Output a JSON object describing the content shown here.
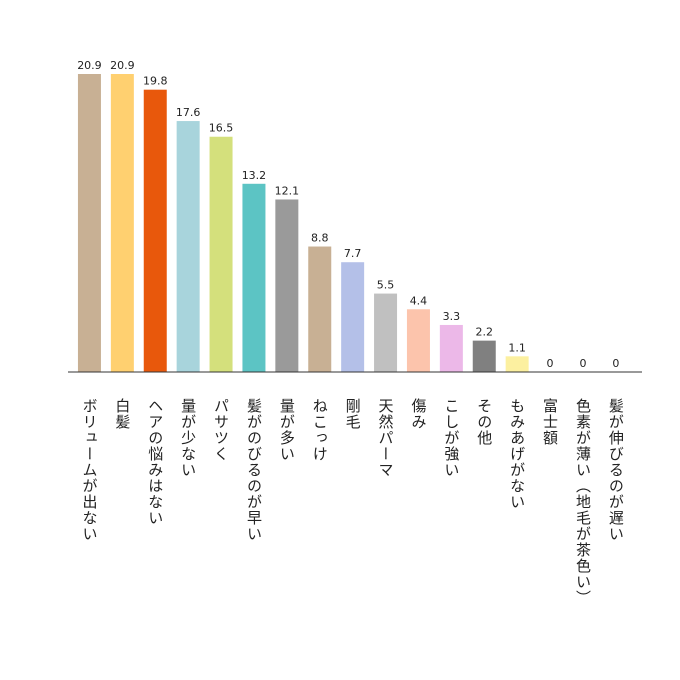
{
  "chart_data": {
    "type": "bar",
    "categories": [
      "ボリュームが出ない",
      "白髪",
      "ヘアの悩みはない",
      "量が少ない",
      "パサツく",
      "髪がのびるのが早い",
      "量が多い",
      "ねこっけ",
      "剛毛",
      "天然パーマ",
      "傷み",
      "こしが強い",
      "その他",
      "もみあげがない",
      "富士額",
      "色素が薄い（地毛が茶色い）",
      "髪が伸びるのが遅い"
    ],
    "values": [
      20.9,
      20.9,
      19.8,
      17.6,
      16.5,
      13.2,
      12.1,
      8.8,
      7.7,
      5.5,
      4.4,
      3.3,
      2.2,
      1.1,
      0,
      0,
      0
    ],
    "colors": [
      "#c8b094",
      "#ffd070",
      "#e8580c",
      "#a8d4dc",
      "#d4e07c",
      "#5cc4c4",
      "#9a9a9a",
      "#c8b094",
      "#b4c0e8",
      "#c0c0c0",
      "#fcc4ac",
      "#ecb8e8",
      "#808080",
      "#fcf0a0",
      "#cccccc",
      "#cccccc",
      "#cccccc"
    ]
  }
}
